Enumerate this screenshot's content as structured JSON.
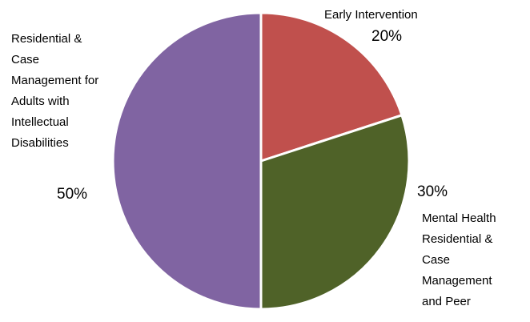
{
  "chart_data": {
    "type": "pie",
    "slices": [
      {
        "label": "Early Intervention",
        "value": 20,
        "value_label": "20%",
        "color": "#c0504d"
      },
      {
        "label": "Mental Health Residential & Case Management and Peer",
        "value": 30,
        "value_label": "30%",
        "color": "#4f6228"
      },
      {
        "label": "Residential & Case Management for Adults with Intellectual Disabilities",
        "value": 50,
        "value_label": "50%",
        "color": "#8064a2"
      }
    ],
    "label_lines": [
      [
        "Early Intervention"
      ],
      [
        "Mental Health",
        "Residential &",
        "Case",
        "Management",
        "and Peer"
      ],
      [
        "Residential &",
        "Case",
        "Management for",
        "Adults with",
        "Intellectual",
        "Disabilities"
      ]
    ],
    "start_angle_deg": 0,
    "direction": "clockwise",
    "legend": "none"
  }
}
